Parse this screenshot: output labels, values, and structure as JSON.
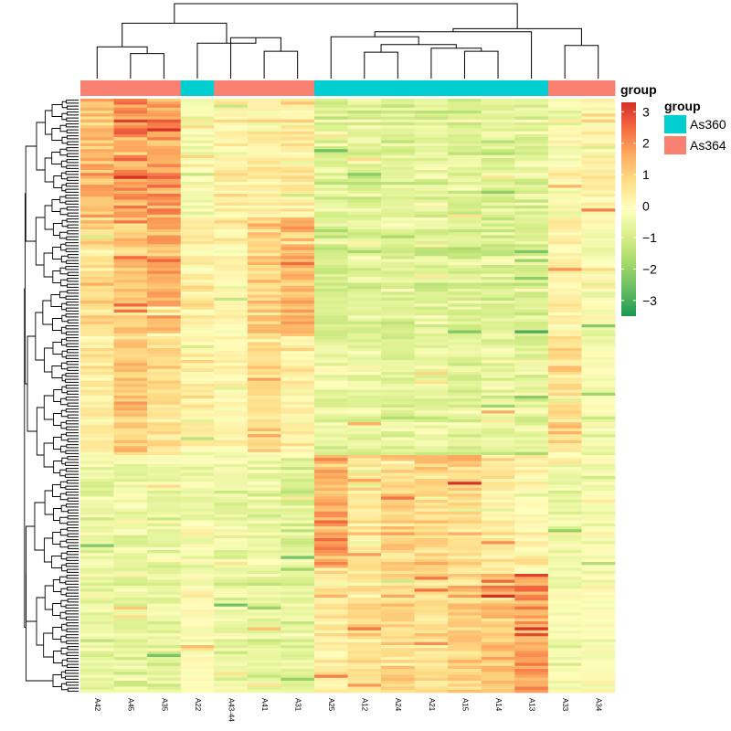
{
  "chart_data": {
    "type": "heatmap",
    "title": "",
    "columns": [
      "A42",
      "A45",
      "A35",
      "A22",
      "A43-44",
      "A41",
      "A31",
      "A25",
      "A12",
      "A24",
      "A21",
      "A15",
      "A14",
      "A13",
      "A33",
      "A34"
    ],
    "column_groups": [
      "As364",
      "As364",
      "As364",
      "As360",
      "As364",
      "As364",
      "As364",
      "As360",
      "As360",
      "As360",
      "As360",
      "As360",
      "As360",
      "As360",
      "As364",
      "As364"
    ],
    "annotation": {
      "title": "group",
      "levels": [
        {
          "name": "As360",
          "color": "#00CED1"
        },
        {
          "name": "As364",
          "color": "#FA8072"
        }
      ]
    },
    "color_scale": {
      "title": "group",
      "min": -3.5,
      "max": 3.3,
      "ticks": [
        3,
        2,
        1,
        0,
        -1,
        -2,
        -3
      ],
      "tick_labels": [
        "3",
        "2",
        "1",
        "0",
        "−1",
        "−2",
        "−3"
      ],
      "colors": [
        "#1A9850",
        "#66BD63",
        "#A6D96A",
        "#D9EF8B",
        "#FFFFBF",
        "#FEE08B",
        "#FDAE61",
        "#F46D43",
        "#D73027"
      ]
    },
    "n_rows": 200,
    "row_blocks": [
      {
        "label": "block-1",
        "profile": [
          1.4,
          1.9,
          1.8,
          -0.4,
          0.3,
          0.3,
          0.5,
          -0.9,
          -0.8,
          -0.8,
          -0.7,
          -0.9,
          -0.8,
          -0.8,
          -0.2,
          0.2
        ]
      },
      {
        "label": "block-2",
        "profile": [
          0.8,
          1.2,
          1.7,
          0.4,
          0.2,
          1.2,
          1.6,
          -0.9,
          -0.7,
          -0.8,
          -0.8,
          -0.9,
          -0.8,
          -0.8,
          0.4,
          -0.2
        ]
      },
      {
        "label": "block-3",
        "profile": [
          0.5,
          1.3,
          0.8,
          0.3,
          0.2,
          0.9,
          0.4,
          -0.6,
          -0.6,
          -0.7,
          -0.6,
          -0.7,
          -0.6,
          -0.7,
          0.9,
          -0.3
        ]
      },
      {
        "label": "block-4",
        "profile": [
          -0.6,
          -0.5,
          -0.5,
          -0.4,
          -0.6,
          -0.6,
          -0.8,
          1.8,
          0.6,
          1.1,
          1.1,
          1.0,
          0.5,
          0.3,
          -0.4,
          -0.3
        ]
      },
      {
        "label": "block-5",
        "profile": [
          -0.7,
          -0.7,
          -0.7,
          -0.1,
          -0.6,
          -0.7,
          -0.8,
          0.4,
          0.7,
          1.0,
          0.7,
          1.2,
          1.3,
          2.0,
          -0.4,
          -0.1
        ]
      }
    ],
    "row_block_sizes": [
      40,
      40,
      40,
      40,
      40
    ],
    "col_dendrogram": {
      "nodes": [
        {
          "l": "A45",
          "r": "A35",
          "h": 0.55
        },
        {
          "l": "A42",
          "r": "n0",
          "h": 0.7
        },
        {
          "l": "A41",
          "r": "A31",
          "h": 0.6
        },
        {
          "l": "A43-44",
          "r": "n2",
          "h": 0.9
        },
        {
          "l": "A22",
          "r": "n3",
          "h": 0.78
        },
        {
          "l": "n1",
          "r": "n4",
          "h": 1.22
        },
        {
          "l": "A12",
          "r": "A24",
          "h": 0.58
        },
        {
          "l": "A15",
          "r": "A14",
          "h": 0.6
        },
        {
          "l": "A21",
          "r": "n7",
          "h": 0.67
        },
        {
          "l": "n6",
          "r": "n8",
          "h": 0.75
        },
        {
          "l": "A25",
          "r": "n9",
          "h": 0.92
        },
        {
          "l": "n10",
          "r": "A13",
          "h": 1.03
        },
        {
          "l": "A33",
          "r": "A34",
          "h": 0.73
        },
        {
          "l": "n11",
          "r": "n12",
          "h": 1.1
        },
        {
          "l": "n5",
          "r": "n13",
          "h": 1.65
        }
      ]
    }
  }
}
